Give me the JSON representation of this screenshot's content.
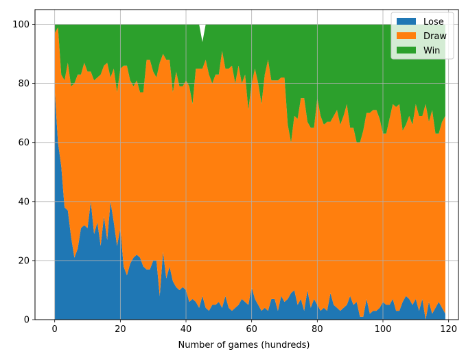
{
  "chart_data": {
    "type": "area",
    "stacked": true,
    "title": "",
    "xlabel": "Number of games (hundreds)",
    "ylabel": "",
    "xlim": [
      -6,
      123
    ],
    "ylim": [
      0,
      105
    ],
    "xticks": [
      0,
      20,
      40,
      60,
      80,
      100,
      120
    ],
    "yticks": [
      0,
      20,
      40,
      60,
      80,
      100
    ],
    "grid": true,
    "legend_position": "top-right",
    "x": [
      0,
      1,
      2,
      3,
      4,
      5,
      6,
      7,
      8,
      9,
      10,
      11,
      12,
      13,
      14,
      15,
      16,
      17,
      18,
      19,
      20,
      21,
      22,
      23,
      24,
      25,
      26,
      27,
      28,
      29,
      30,
      31,
      32,
      33,
      34,
      35,
      36,
      37,
      38,
      39,
      40,
      41,
      42,
      43,
      44,
      45,
      46,
      47,
      48,
      49,
      50,
      51,
      52,
      53,
      54,
      55,
      56,
      57,
      58,
      59,
      60,
      61,
      62,
      63,
      64,
      65,
      66,
      67,
      68,
      69,
      70,
      71,
      72,
      73,
      74,
      75,
      76,
      77,
      78,
      79,
      80,
      81,
      82,
      83,
      84,
      85,
      86,
      87,
      88,
      89,
      90,
      91,
      92,
      93,
      94,
      95,
      96,
      97,
      98,
      99,
      100,
      101,
      102,
      103,
      104,
      105,
      106,
      107,
      108,
      109,
      110,
      111,
      112,
      113,
      114,
      115,
      116,
      117,
      118,
      119
    ],
    "series": [
      {
        "name": "Lose",
        "color": "#1f77b4",
        "values": [
          78,
          60,
          52,
          38,
          37,
          28,
          21,
          24,
          31,
          32,
          31,
          40,
          29,
          33,
          25,
          35,
          27,
          40,
          33,
          25,
          31,
          18,
          15,
          19,
          21,
          22,
          21,
          18,
          17,
          17,
          20,
          20,
          8,
          23,
          14,
          18,
          13,
          11,
          10,
          11,
          10,
          6,
          7,
          6,
          4,
          8,
          4,
          3,
          5,
          5,
          6,
          4,
          8,
          4,
          3,
          4,
          5,
          7,
          6,
          5,
          11,
          7,
          5,
          3,
          4,
          3,
          7,
          7,
          3,
          8,
          6,
          7,
          9,
          10,
          5,
          7,
          3,
          10,
          4,
          7,
          5,
          3,
          4,
          3,
          9,
          5,
          4,
          3,
          4,
          5,
          8,
          5,
          6,
          1,
          1,
          7,
          2,
          3,
          3,
          4,
          6,
          5,
          5,
          7,
          3,
          3,
          6,
          8,
          7,
          5,
          7,
          3,
          7,
          0,
          6,
          2,
          4,
          6,
          4,
          2
        ]
      },
      {
        "name": "Draw",
        "color": "#ff7f0e",
        "values": [
          19,
          39,
          31,
          43,
          50,
          51,
          59,
          59,
          52,
          55,
          53,
          44,
          52,
          49,
          58,
          51,
          60,
          42,
          52,
          52,
          54,
          68,
          71,
          62,
          58,
          59,
          56,
          59,
          71,
          71,
          64,
          62,
          79,
          67,
          74,
          70,
          64,
          73,
          69,
          68,
          71,
          73,
          66,
          79,
          81,
          77,
          84,
          80,
          75,
          78,
          77,
          87,
          77,
          81,
          83,
          76,
          81,
          73,
          77,
          66,
          69,
          78,
          75,
          70,
          79,
          85,
          74,
          74,
          78,
          74,
          76,
          59,
          51,
          59,
          63,
          68,
          72,
          57,
          61,
          58,
          70,
          66,
          62,
          64,
          58,
          64,
          67,
          63,
          65,
          68,
          57,
          60,
          54,
          59,
          63,
          63,
          68,
          68,
          68,
          64,
          57,
          58,
          63,
          66,
          69,
          70,
          58,
          58,
          62,
          61,
          66,
          66,
          62,
          73,
          61,
          69,
          59,
          57,
          63,
          67
        ]
      },
      {
        "name": "Win",
        "color": "#2ca02c",
        "values": [
          3,
          1,
          17,
          19,
          13,
          21,
          20,
          17,
          17,
          13,
          16,
          16,
          19,
          18,
          17,
          14,
          13,
          18,
          15,
          23,
          15,
          14,
          14,
          19,
          21,
          19,
          23,
          23,
          12,
          12,
          16,
          18,
          13,
          10,
          12,
          12,
          23,
          16,
          21,
          21,
          19,
          21,
          27,
          15,
          15,
          9,
          12,
          17,
          20,
          17,
          17,
          9,
          15,
          15,
          14,
          20,
          14,
          20,
          17,
          29,
          20,
          15,
          20,
          27,
          17,
          12,
          19,
          19,
          19,
          18,
          18,
          34,
          40,
          31,
          32,
          25,
          25,
          33,
          35,
          35,
          25,
          31,
          34,
          33,
          33,
          31,
          29,
          34,
          31,
          27,
          35,
          35,
          40,
          40,
          36,
          30,
          30,
          29,
          29,
          32,
          37,
          37,
          32,
          27,
          28,
          27,
          36,
          34,
          31,
          34,
          27,
          31,
          31,
          27,
          33,
          29,
          37,
          37,
          33,
          31
        ]
      }
    ]
  }
}
